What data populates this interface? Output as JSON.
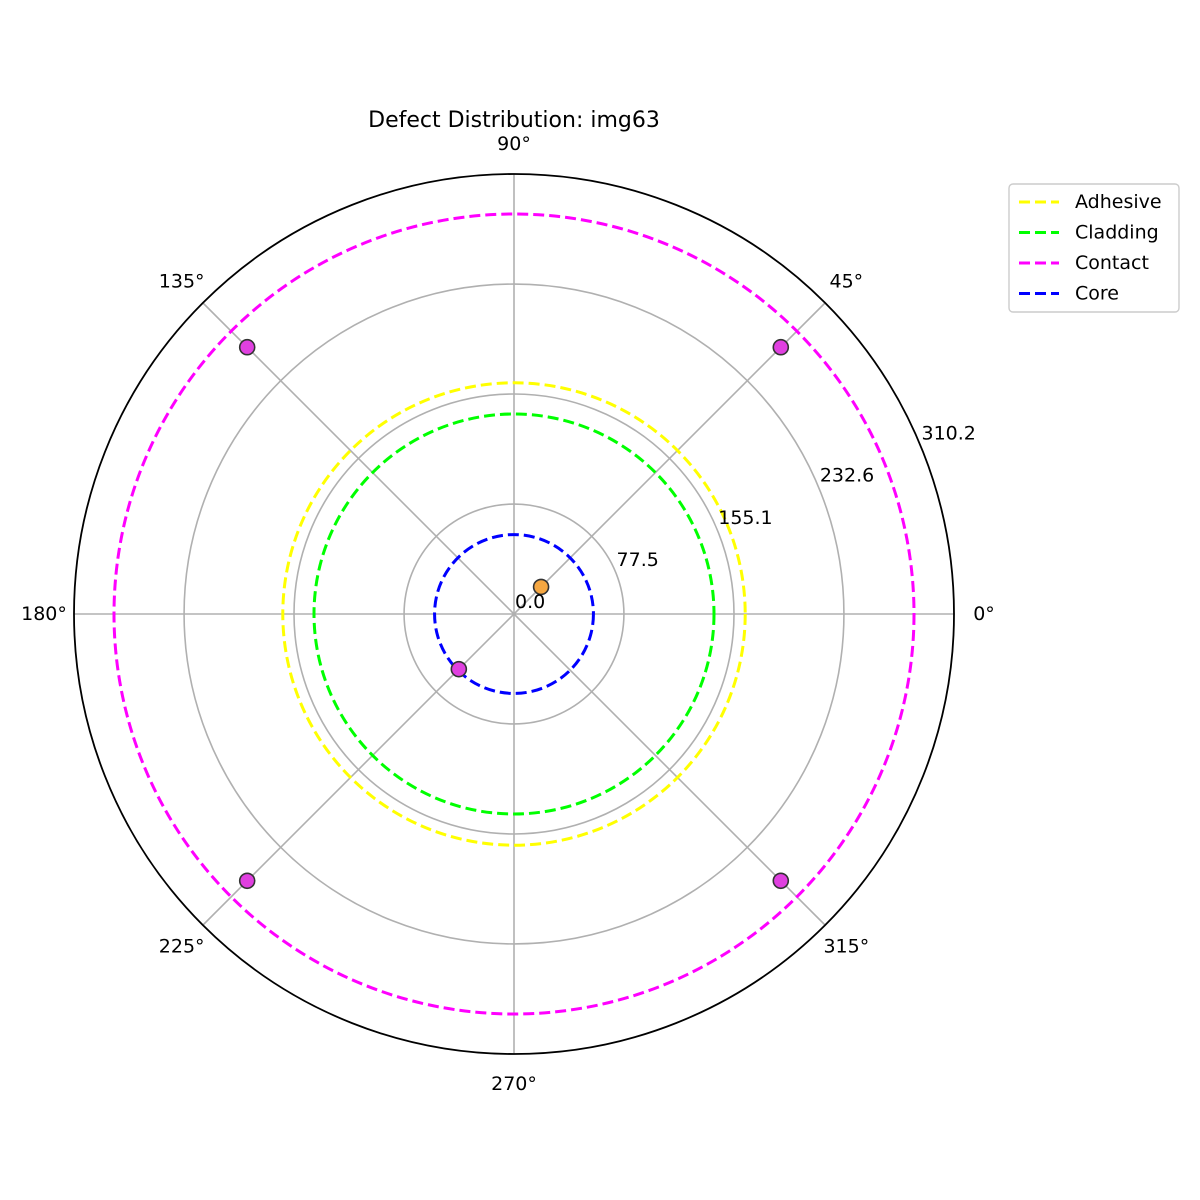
{
  "chart_data": {
    "type": "scatter",
    "projection": "polar",
    "title": "Defect Distribution: img63",
    "angular_ticks": [
      "0°",
      "45°",
      "90°",
      "135°",
      "180°",
      "225°",
      "270°",
      "315°"
    ],
    "angular_tick_values": [
      0,
      45,
      90,
      135,
      180,
      225,
      270,
      315
    ],
    "radial_ticks": [
      "0.0",
      "77.5",
      "155.1",
      "232.6",
      "310.2"
    ],
    "radial_tick_values": [
      0.0,
      77.5,
      155.1,
      232.6,
      310.2
    ],
    "rlim": [
      0,
      310.2
    ],
    "grid": true,
    "legend_position": "upper-right-outside",
    "zones": [
      {
        "name": "Adhesive",
        "radius": 163,
        "color": "#ffff00"
      },
      {
        "name": "Cladding",
        "radius": 141,
        "color": "#00ff00"
      },
      {
        "name": "Contact",
        "radius": 282,
        "color": "#ff00ff"
      },
      {
        "name": "Core",
        "radius": 56,
        "color": "#0000ff"
      }
    ],
    "points": [
      {
        "theta": 45,
        "r": 27,
        "color": "#f5a742"
      },
      {
        "theta": 45,
        "r": 266,
        "color": "#e040e0"
      },
      {
        "theta": 135,
        "r": 266,
        "color": "#e040e0"
      },
      {
        "theta": 225,
        "r": 266,
        "color": "#e040e0"
      },
      {
        "theta": 315,
        "r": 266,
        "color": "#e040e0"
      },
      {
        "theta": 225,
        "r": 55,
        "color": "#e040e0"
      }
    ]
  }
}
